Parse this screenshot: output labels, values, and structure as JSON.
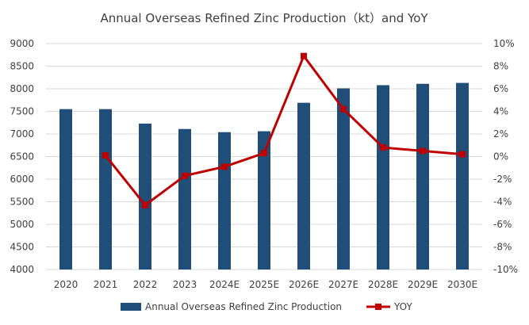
{
  "chart_data": {
    "type": "bar",
    "title": "Annual Overseas Refined Zinc Production（kt）and YoY",
    "categories": [
      "2020",
      "2021",
      "2022",
      "2023",
      "2024E",
      "2025E",
      "2026E",
      "2027E",
      "2028E",
      "2029E",
      "2030E"
    ],
    "ylim": [
      4000,
      9000
    ],
    "yticks": [
      "9000",
      "8500",
      "8000",
      "7500",
      "7000",
      "6500",
      "6000",
      "5500",
      "5000",
      "4500",
      "4000"
    ],
    "y2lim": [
      -10,
      10
    ],
    "y2ticks": [
      "10%",
      "8%",
      "6%",
      "4%",
      "2%",
      "0%",
      "-2%",
      "-4%",
      "-6%",
      "-8%",
      "-10%"
    ],
    "series": [
      {
        "name": "Annual Overseas Refined Zinc Production",
        "type": "bar",
        "axis": "left",
        "color": "#1f4e79",
        "values": [
          7550,
          7550,
          7230,
          7110,
          7040,
          7060,
          7690,
          8010,
          8080,
          8110,
          8130
        ]
      },
      {
        "name": "YOY",
        "type": "line",
        "axis": "right",
        "color": "#c00000",
        "values": [
          null,
          0.1,
          -4.3,
          -1.7,
          -0.9,
          0.3,
          8.9,
          4.2,
          0.8,
          0.5,
          0.2
        ]
      }
    ],
    "grid": true,
    "legend": "bottom"
  }
}
